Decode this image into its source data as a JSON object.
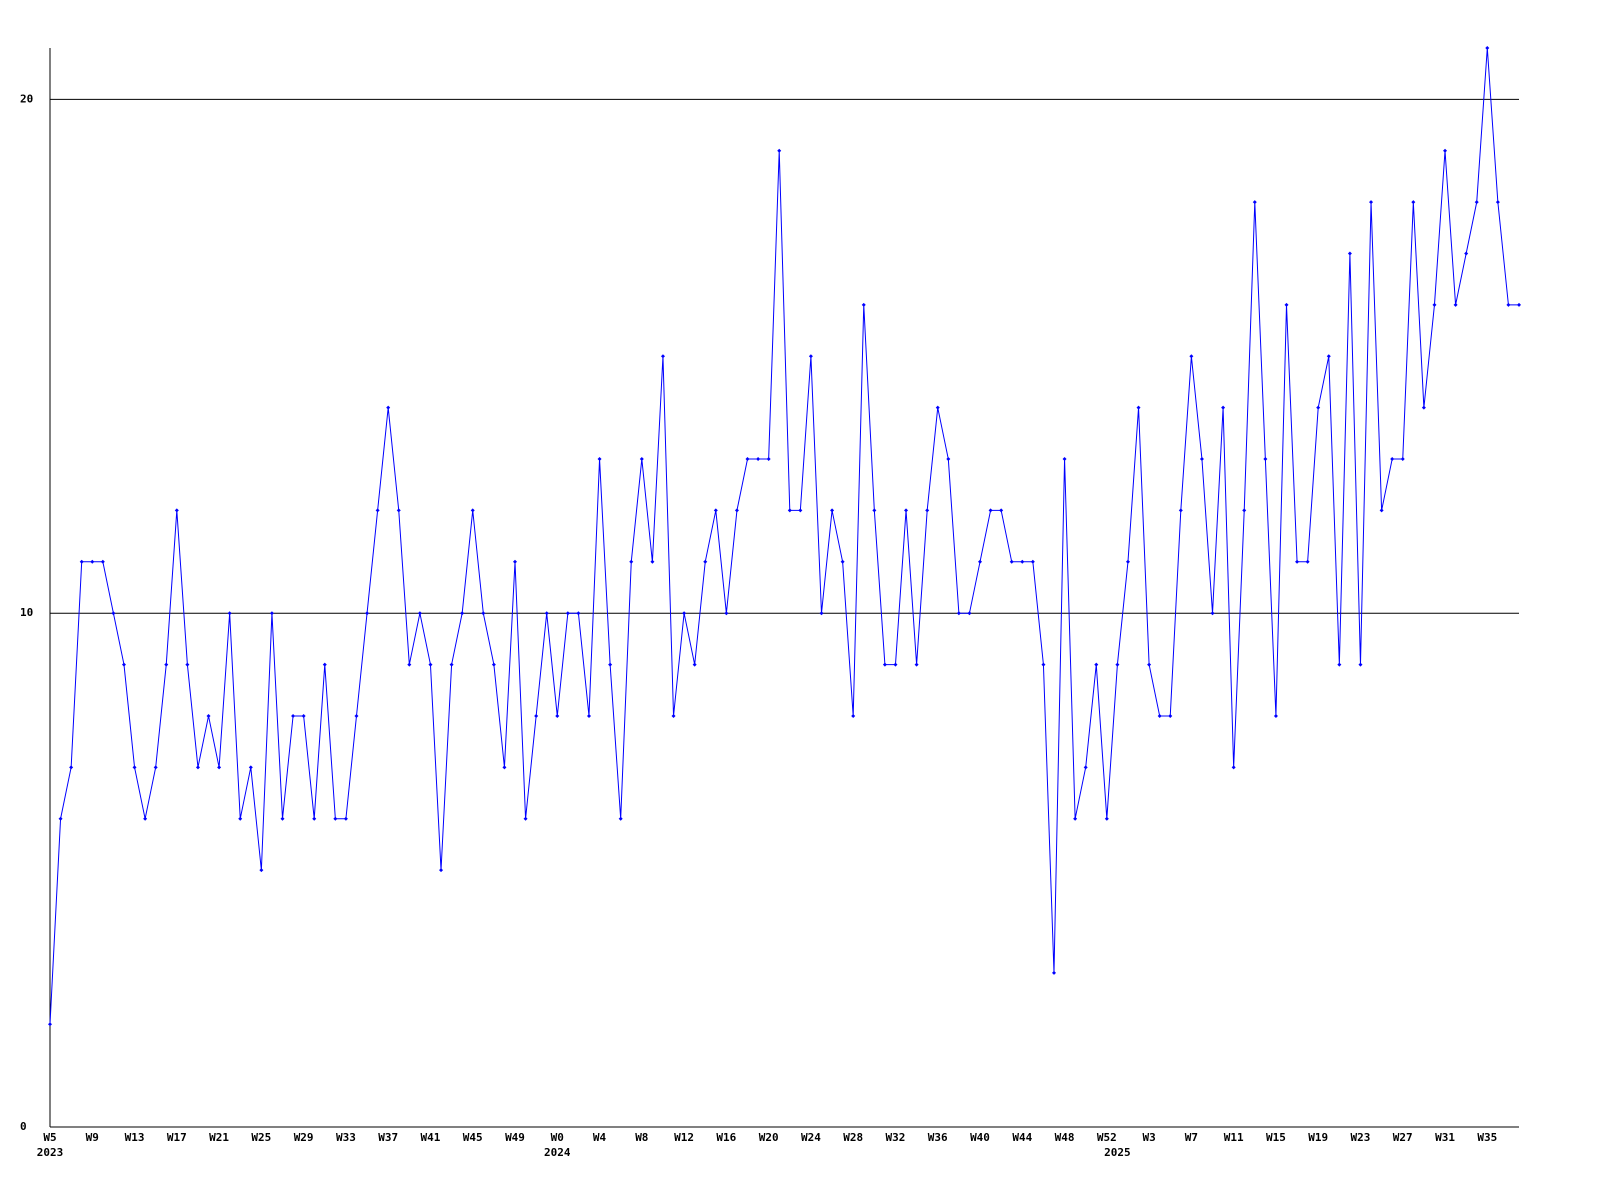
{
  "chart_data": {
    "type": "line",
    "categories": [
      "W5",
      null,
      null,
      null,
      "W9",
      null,
      null,
      null,
      "W13",
      null,
      null,
      null,
      "W17",
      null,
      null,
      null,
      "W21",
      null,
      null,
      null,
      "W25",
      null,
      null,
      null,
      "W29",
      null,
      null,
      null,
      "W33",
      null,
      null,
      null,
      "W37",
      null,
      null,
      null,
      "W41",
      null,
      null,
      null,
      "W45",
      null,
      null,
      null,
      "W49",
      null,
      null,
      null,
      "W0",
      null,
      null,
      null,
      "W4",
      null,
      null,
      null,
      "W8",
      null,
      null,
      null,
      "W12",
      null,
      null,
      null,
      "W16",
      null,
      null,
      null,
      "W20",
      null,
      null,
      null,
      "W24",
      null,
      null,
      null,
      "W28",
      null,
      null,
      null,
      "W32",
      null,
      null,
      null,
      "W36",
      null,
      null,
      null,
      "W40",
      null,
      null,
      null,
      "W44",
      null,
      null,
      null,
      "W48",
      null,
      null,
      null,
      "W52",
      null,
      null,
      null,
      "W3",
      null,
      null,
      null,
      "W7",
      null,
      null,
      null,
      "W11",
      null,
      null,
      null,
      "W15",
      null,
      null,
      null,
      "W19",
      null,
      null,
      null,
      "W23",
      null,
      null,
      null,
      "W27",
      null,
      null,
      null,
      "W31",
      null,
      null,
      null,
      "W35",
      null,
      null,
      null
    ],
    "year_labels": [
      {
        "week_index": 0,
        "label": "2023"
      },
      {
        "week_index": 48,
        "label": "2024"
      },
      {
        "week_index": 101,
        "label": "2025"
      }
    ],
    "series": [
      {
        "color": "#0000ff",
        "values": [
          2,
          6,
          7,
          11,
          11,
          11,
          10,
          9,
          7,
          6,
          7,
          9,
          12,
          9,
          7,
          8,
          7,
          10,
          6,
          7,
          5,
          10,
          6,
          8,
          8,
          6,
          9,
          6,
          6,
          8,
          10,
          12,
          14,
          12,
          9,
          10,
          9,
          5,
          9,
          10,
          12,
          10,
          9,
          7,
          11,
          6,
          8,
          10,
          8,
          10,
          10,
          8,
          13,
          9,
          6,
          11,
          13,
          11,
          15,
          8,
          10,
          9,
          11,
          12,
          10,
          12,
          13,
          13,
          13,
          19,
          12,
          12,
          15,
          10,
          12,
          11,
          8,
          16,
          12,
          9,
          9,
          12,
          9,
          12,
          14,
          13,
          10,
          10,
          11,
          12,
          12,
          11,
          11,
          11,
          9,
          3,
          13,
          6,
          7,
          9,
          6,
          9,
          11,
          14,
          9,
          8,
          8,
          12,
          15,
          13,
          10,
          14,
          7,
          12,
          18,
          13,
          8,
          16,
          11,
          11,
          14,
          15,
          9,
          17,
          9,
          18,
          12,
          13,
          13,
          18,
          14,
          16,
          19,
          16,
          17,
          18,
          21,
          18,
          16,
          16
        ]
      }
    ],
    "ylim": [
      0,
      21
    ],
    "yticks": [
      0,
      10,
      20
    ],
    "grid": true
  }
}
